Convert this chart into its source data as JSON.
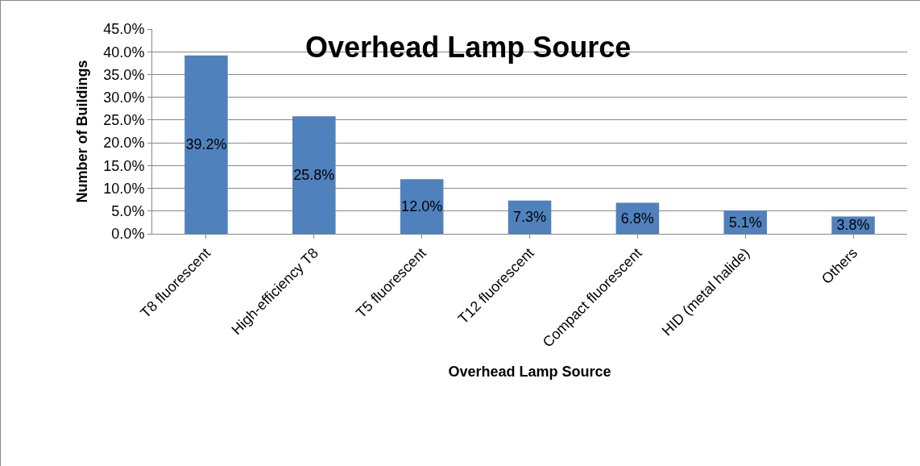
{
  "chart_data": {
    "type": "bar",
    "title": "Overhead Lamp Source",
    "xlabel": "Overhead Lamp Source",
    "ylabel": "Number of Buildings",
    "categories": [
      "T8 fluorescent",
      "High-efficiency T8",
      "T5 fluorescent",
      "T12 fluorescent",
      "Compact fluorescent",
      "HID (metal halide)",
      "Others"
    ],
    "values": [
      39.2,
      25.8,
      12.0,
      7.3,
      6.8,
      5.1,
      3.8
    ],
    "value_labels": [
      "39.2%",
      "25.8%",
      "12.0%",
      "7.3%",
      "6.8%",
      "5.1%",
      "3.8%"
    ],
    "color": "#4f81bd",
    "ylim": [
      0,
      45
    ],
    "yticks": [
      {
        "value": 0,
        "label": "0.0%"
      },
      {
        "value": 5,
        "label": "5.0%"
      },
      {
        "value": 10,
        "label": "10.0%"
      },
      {
        "value": 15,
        "label": "15.0%"
      },
      {
        "value": 20,
        "label": "20.0%"
      },
      {
        "value": 25,
        "label": "25.0%"
      },
      {
        "value": 30,
        "label": "30.0%"
      },
      {
        "value": 35,
        "label": "35.0%"
      },
      {
        "value": 40,
        "label": "40.0%"
      },
      {
        "value": 45,
        "label": "45.0%"
      }
    ],
    "grid": "y"
  }
}
